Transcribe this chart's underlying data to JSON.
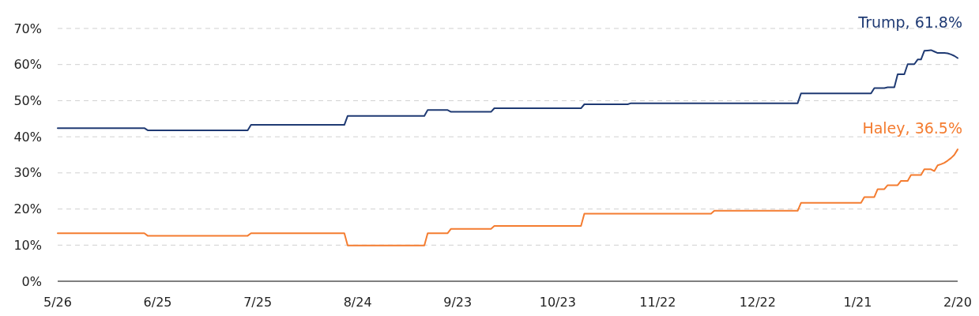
{
  "chart_data": {
    "type": "line",
    "ylim": [
      0,
      70
    ],
    "categories": [
      "5/26",
      null,
      null,
      null,
      null,
      null,
      null,
      null,
      null,
      null,
      null,
      null,
      null,
      null,
      null,
      null,
      null,
      null,
      null,
      null,
      null,
      null,
      null,
      null,
      null,
      null,
      null,
      null,
      null,
      null,
      "6/25",
      null,
      null,
      null,
      null,
      null,
      null,
      null,
      null,
      null,
      null,
      null,
      null,
      null,
      null,
      null,
      null,
      null,
      null,
      null,
      null,
      null,
      null,
      null,
      null,
      null,
      null,
      null,
      null,
      null,
      "7/25",
      null,
      null,
      null,
      null,
      null,
      null,
      null,
      null,
      null,
      null,
      null,
      null,
      null,
      null,
      null,
      null,
      null,
      null,
      null,
      null,
      null,
      null,
      null,
      null,
      null,
      null,
      null,
      null,
      null,
      "8/24",
      null,
      null,
      null,
      null,
      null,
      null,
      null,
      null,
      null,
      null,
      null,
      null,
      null,
      null,
      null,
      null,
      null,
      null,
      null,
      null,
      null,
      null,
      null,
      null,
      null,
      null,
      null,
      null,
      null,
      "9/23",
      null,
      null,
      null,
      null,
      null,
      null,
      null,
      null,
      null,
      null,
      null,
      null,
      null,
      null,
      null,
      null,
      null,
      null,
      null,
      null,
      null,
      null,
      null,
      null,
      null,
      null,
      null,
      null,
      null,
      "10/23",
      null,
      null,
      null,
      null,
      null,
      null,
      null,
      null,
      null,
      null,
      null,
      null,
      null,
      null,
      null,
      null,
      null,
      null,
      null,
      null,
      null,
      null,
      null,
      null,
      null,
      null,
      null,
      null,
      null,
      "11/22",
      null,
      null,
      null,
      null,
      null,
      null,
      null,
      null,
      null,
      null,
      null,
      null,
      null,
      null,
      null,
      null,
      null,
      null,
      null,
      null,
      null,
      null,
      null,
      null,
      null,
      null,
      null,
      null,
      null,
      "12/22",
      null,
      null,
      null,
      null,
      null,
      null,
      null,
      null,
      null,
      null,
      null,
      null,
      null,
      null,
      null,
      null,
      null,
      null,
      null,
      null,
      null,
      null,
      null,
      null,
      null,
      null,
      null,
      null,
      null,
      "1/21",
      null,
      null,
      null,
      null,
      null,
      null,
      null,
      null,
      null,
      null,
      null,
      null,
      null,
      null,
      null,
      null,
      null,
      null,
      null,
      null,
      null,
      null,
      null,
      null,
      null,
      null,
      null,
      null,
      null,
      "2/20"
    ],
    "yticks": [
      {
        "value": 0,
        "label": "0%"
      },
      {
        "value": 10,
        "label": "10%"
      },
      {
        "value": 20,
        "label": "20%"
      },
      {
        "value": 30,
        "label": "30%"
      },
      {
        "value": 40,
        "label": "40%"
      },
      {
        "value": 50,
        "label": "50%"
      },
      {
        "value": 60,
        "label": "60%"
      },
      {
        "value": 70,
        "label": "70%"
      }
    ],
    "grid": "y",
    "series": [
      {
        "color": "#1f3a73",
        "values": [
          42.4,
          42.4,
          42.4,
          42.4,
          42.4,
          42.4,
          42.4,
          42.4,
          42.4,
          42.4,
          42.4,
          42.4,
          42.4,
          42.4,
          42.4,
          42.4,
          42.4,
          42.4,
          42.4,
          42.4,
          42.4,
          42.4,
          42.4,
          42.4,
          42.4,
          42.4,
          42.4,
          41.8,
          41.8,
          41.8,
          41.8,
          41.8,
          41.8,
          41.8,
          41.8,
          41.8,
          41.8,
          41.8,
          41.8,
          41.8,
          41.8,
          41.8,
          41.8,
          41.8,
          41.8,
          41.8,
          41.8,
          41.8,
          41.8,
          41.8,
          41.8,
          41.8,
          41.8,
          41.8,
          41.8,
          41.8,
          41.8,
          41.8,
          43.3,
          43.3,
          43.3,
          43.3,
          43.3,
          43.3,
          43.3,
          43.3,
          43.3,
          43.3,
          43.3,
          43.3,
          43.3,
          43.3,
          43.3,
          43.3,
          43.3,
          43.3,
          43.3,
          43.3,
          43.3,
          43.3,
          43.3,
          43.3,
          43.3,
          43.3,
          43.3,
          43.3,
          43.3,
          45.8,
          45.8,
          45.8,
          45.8,
          45.8,
          45.8,
          45.8,
          45.8,
          45.8,
          45.8,
          45.8,
          45.8,
          45.8,
          45.8,
          45.8,
          45.8,
          45.8,
          45.8,
          45.8,
          45.8,
          45.8,
          45.8,
          45.8,
          45.8,
          47.4,
          47.4,
          47.4,
          47.4,
          47.4,
          47.4,
          47.4,
          46.9,
          46.9,
          46.9,
          46.9,
          46.9,
          46.9,
          46.9,
          46.9,
          46.9,
          46.9,
          46.9,
          46.9,
          46.9,
          47.9,
          47.9,
          47.9,
          47.9,
          47.9,
          47.9,
          47.9,
          47.9,
          47.9,
          47.9,
          47.9,
          47.9,
          47.9,
          47.9,
          47.9,
          47.9,
          47.9,
          47.9,
          47.9,
          47.9,
          47.9,
          47.9,
          47.9,
          47.9,
          47.9,
          47.9,
          47.9,
          49.0,
          49.0,
          49.0,
          49.0,
          49.0,
          49.0,
          49.0,
          49.0,
          49.0,
          49.0,
          49.0,
          49.0,
          49.0,
          49.0,
          49.3,
          49.3,
          49.3,
          49.3,
          49.3,
          49.3,
          49.3,
          49.3,
          49.3,
          49.3,
          49.3,
          49.3,
          49.3,
          49.3,
          49.3,
          49.3,
          49.3,
          49.3,
          49.3,
          49.3,
          49.3,
          49.3,
          49.3,
          49.3,
          49.3,
          49.3,
          49.3,
          49.3,
          49.3,
          49.3,
          49.3,
          49.3,
          49.3,
          49.3,
          49.3,
          49.3,
          49.3,
          49.3,
          49.3,
          49.3,
          49.3,
          49.3,
          49.3,
          49.3,
          49.3,
          49.3,
          49.3,
          49.3,
          49.3,
          49.3,
          49.3,
          52.0,
          52.0,
          52.0,
          52.0,
          52.0,
          52.0,
          52.0,
          52.0,
          52.0,
          52.0,
          52.0,
          52.0,
          52.0,
          52.0,
          52.0,
          52.0,
          52.0,
          52.0,
          52.0,
          52.0,
          52.0,
          52.0,
          53.5,
          53.5,
          53.5,
          53.5,
          53.7,
          53.7,
          53.7,
          57.3,
          57.3,
          57.3,
          60.1,
          60.1,
          60.1,
          61.4,
          61.4,
          63.8,
          63.9,
          64.0,
          63.6,
          63.2,
          63.2,
          63.2,
          63.1,
          62.8,
          62.4,
          61.8
        ]
      },
      {
        "color": "#f47c30",
        "values": [
          13.3,
          13.3,
          13.3,
          13.3,
          13.3,
          13.3,
          13.3,
          13.3,
          13.3,
          13.3,
          13.3,
          13.3,
          13.3,
          13.3,
          13.3,
          13.3,
          13.3,
          13.3,
          13.3,
          13.3,
          13.3,
          13.3,
          13.3,
          13.3,
          13.3,
          13.3,
          13.3,
          12.6,
          12.6,
          12.6,
          12.6,
          12.6,
          12.6,
          12.6,
          12.6,
          12.6,
          12.6,
          12.6,
          12.6,
          12.6,
          12.6,
          12.6,
          12.6,
          12.6,
          12.6,
          12.6,
          12.6,
          12.6,
          12.6,
          12.6,
          12.6,
          12.6,
          12.6,
          12.6,
          12.6,
          12.6,
          12.6,
          12.6,
          13.3,
          13.3,
          13.3,
          13.3,
          13.3,
          13.3,
          13.3,
          13.3,
          13.3,
          13.3,
          13.3,
          13.3,
          13.3,
          13.3,
          13.3,
          13.3,
          13.3,
          13.3,
          13.3,
          13.3,
          13.3,
          13.3,
          13.3,
          13.3,
          13.3,
          13.3,
          13.3,
          13.3,
          13.3,
          9.9,
          9.9,
          9.9,
          9.9,
          9.9,
          9.9,
          9.9,
          9.9,
          9.9,
          9.9,
          9.9,
          9.9,
          9.9,
          9.9,
          9.9,
          9.9,
          9.9,
          9.9,
          9.9,
          9.9,
          9.9,
          9.9,
          9.9,
          9.9,
          13.3,
          13.3,
          13.3,
          13.3,
          13.3,
          13.3,
          13.3,
          14.5,
          14.5,
          14.5,
          14.5,
          14.5,
          14.5,
          14.5,
          14.5,
          14.5,
          14.5,
          14.5,
          14.5,
          14.5,
          15.3,
          15.3,
          15.3,
          15.3,
          15.3,
          15.3,
          15.3,
          15.3,
          15.3,
          15.3,
          15.3,
          15.3,
          15.3,
          15.3,
          15.3,
          15.3,
          15.3,
          15.3,
          15.3,
          15.3,
          15.3,
          15.3,
          15.3,
          15.3,
          15.3,
          15.3,
          15.3,
          18.7,
          18.7,
          18.7,
          18.7,
          18.7,
          18.7,
          18.7,
          18.7,
          18.7,
          18.7,
          18.7,
          18.7,
          18.7,
          18.7,
          18.7,
          18.7,
          18.7,
          18.7,
          18.7,
          18.7,
          18.7,
          18.7,
          18.7,
          18.7,
          18.7,
          18.7,
          18.7,
          18.7,
          18.7,
          18.7,
          18.7,
          18.7,
          18.7,
          18.7,
          18.7,
          18.7,
          18.7,
          18.7,
          18.7,
          19.5,
          19.5,
          19.5,
          19.5,
          19.5,
          19.5,
          19.5,
          19.5,
          19.5,
          19.5,
          19.5,
          19.5,
          19.5,
          19.5,
          19.5,
          19.5,
          19.5,
          19.5,
          19.5,
          19.5,
          19.5,
          19.5,
          19.5,
          19.5,
          19.5,
          19.5,
          21.7,
          21.7,
          21.7,
          21.7,
          21.7,
          21.7,
          21.7,
          21.7,
          21.7,
          21.7,
          21.7,
          21.7,
          21.7,
          21.7,
          21.7,
          21.7,
          21.7,
          21.7,
          21.7,
          23.3,
          23.3,
          23.3,
          23.3,
          25.5,
          25.5,
          25.5,
          26.6,
          26.6,
          26.6,
          26.6,
          27.8,
          27.8,
          27.8,
          29.4,
          29.4,
          29.4,
          29.4,
          31.0,
          31.0,
          31.0,
          30.5,
          32.1,
          32.4,
          32.8,
          33.4,
          34.1,
          35.0,
          36.5
        ]
      }
    ],
    "annotations": [
      "Trump, 61.8%",
      "Haley, 36.5%"
    ]
  }
}
